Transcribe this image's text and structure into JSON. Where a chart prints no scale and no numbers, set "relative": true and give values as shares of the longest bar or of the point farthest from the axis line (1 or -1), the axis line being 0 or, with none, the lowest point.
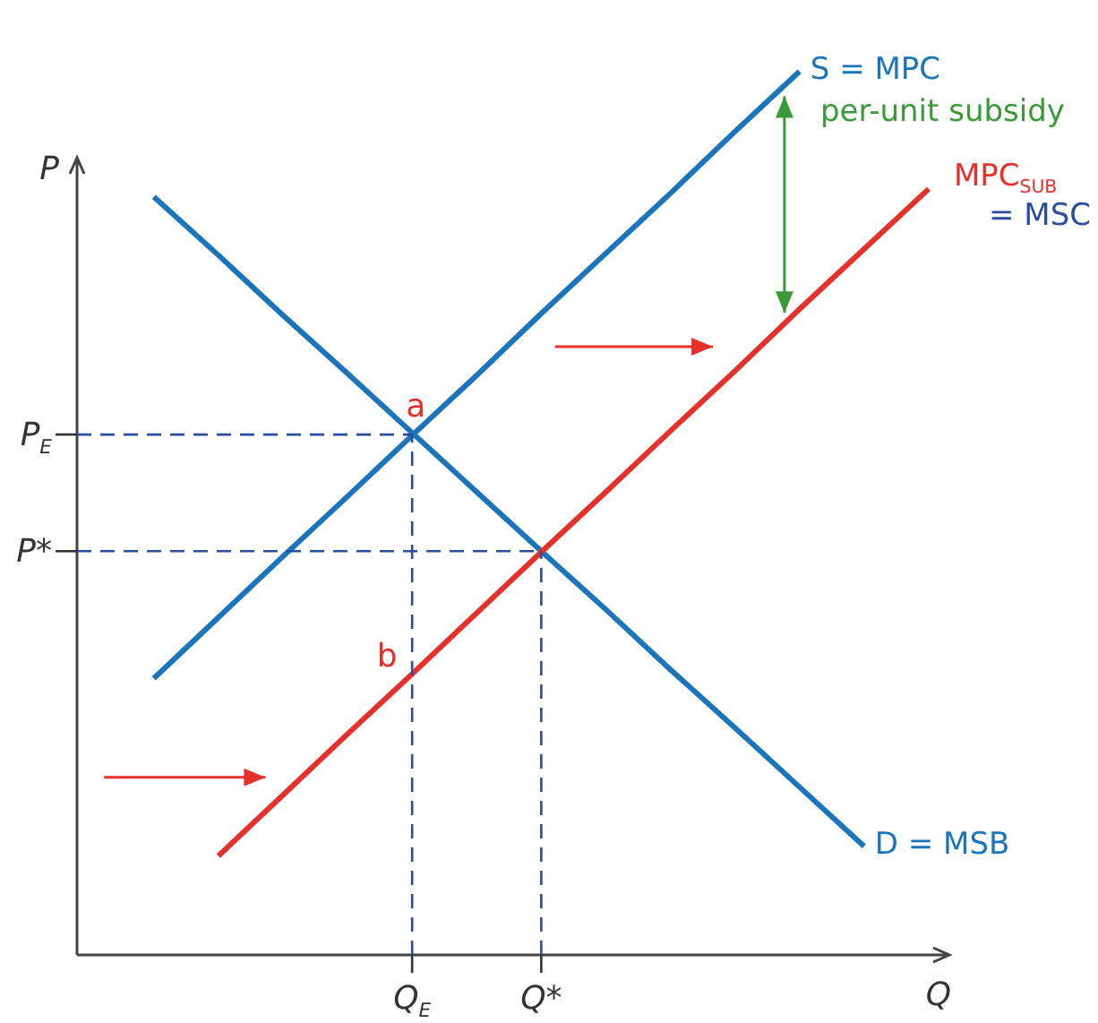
{
  "chart_data": {
    "type": "line",
    "xlabel": "Q",
    "ylabel": "P",
    "relative": true,
    "categories": [
      null,
      null,
      null,
      null,
      null,
      "Q$_{E}$",
      null,
      "Q*",
      null,
      null,
      null,
      null,
      null,
      null
    ],
    "grid": false,
    "legend": false,
    "marker": "none",
    "series": [
      {
        "name": "S = MPC",
        "color": "#1a75bc",
        "values": [
          null,
          0.313,
          0.382,
          0.451,
          0.519,
          0.588,
          0.656,
          0.726,
          0.794,
          0.862,
          0.932,
          1,
          null,
          null
        ]
      },
      {
        "name": "MPC$_{SUB}$ = MSC",
        "color": "#e8302a",
        "values": [
          null,
          null,
          0.112,
          0.181,
          0.25,
          0.318,
          0.387,
          0.456,
          0.524,
          0.593,
          0.661,
          0.731,
          0.799,
          0.867
        ]
      },
      {
        "name": "D = MSB",
        "color": "#1a75bc",
        "values": [
          null,
          0.858,
          0.792,
          0.724,
          0.658,
          0.591,
          0.524,
          0.457,
          0.391,
          0.323,
          0.257,
          0.19,
          0.123,
          null
        ]
      }
    ],
    "ref_lines": [
      {
        "axis": "y",
        "value": 0.589,
        "label": "P$_{E}$",
        "color": "#2a4da0",
        "line_style": "dashed"
      },
      {
        "axis": "y",
        "value": 0.457,
        "label": "P*",
        "color": "#2a4da0",
        "line_style": "dashed"
      },
      {
        "axis": "x",
        "value": "Q$_{E}$",
        "color": "#2a4da0",
        "line_style": "dashed"
      },
      {
        "axis": "x",
        "value": "Q*",
        "color": "#2a4da0",
        "line_style": "dashed"
      }
    ],
    "annotations": [
      {
        "text": "a",
        "x": "Q$_{E}$",
        "y": 0.589
      },
      {
        "text": "b",
        "x": "Q$_{E}$",
        "y": 0.318
      },
      "per-unit subsidy"
    ]
  }
}
